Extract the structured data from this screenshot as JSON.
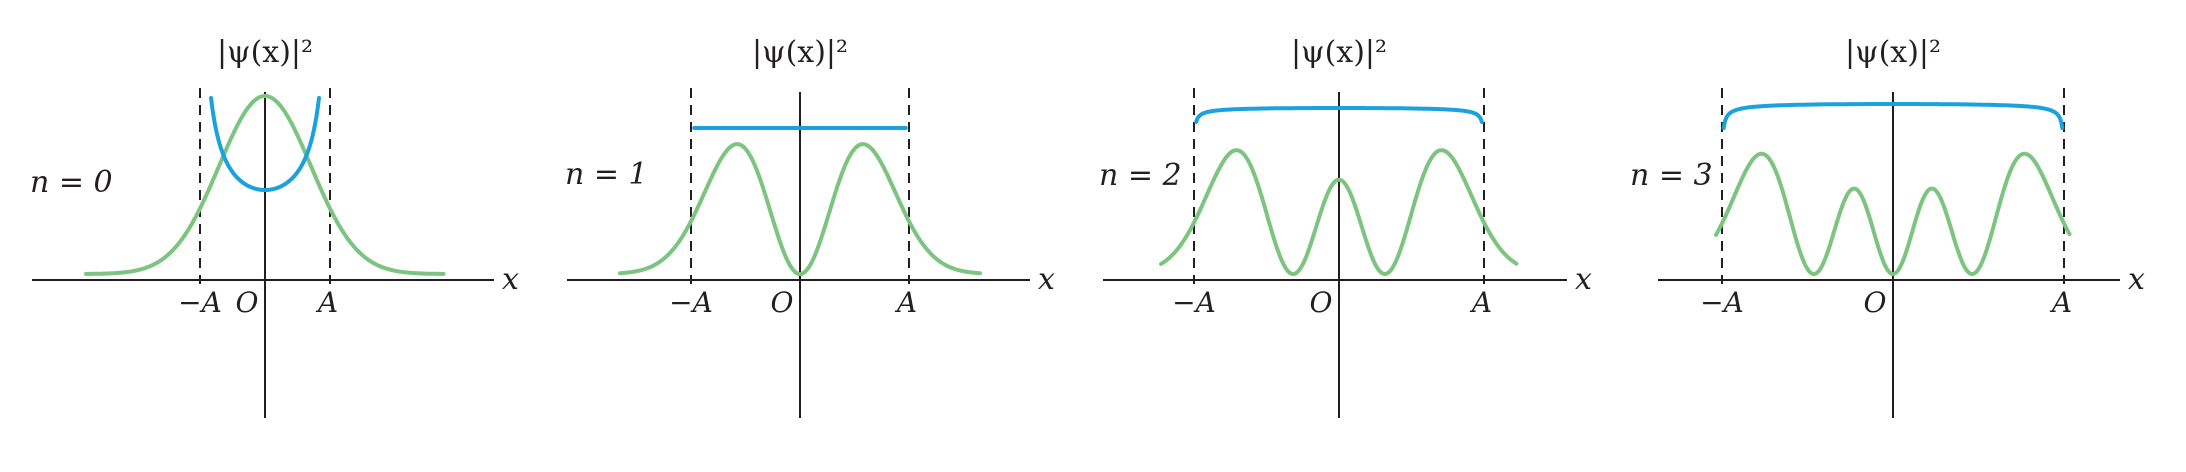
{
  "colors": {
    "quantum_curve": "#7cc47f",
    "classical_curve": "#1ba1de",
    "axes": "#231f20"
  },
  "panels": [
    {
      "n_label": "n = 0",
      "n": 0,
      "y_axis_label": "|ψ(x)|²",
      "x_axis_label": "x",
      "minus_A_label": "−A",
      "origin_label": "O",
      "A_label": "A"
    },
    {
      "n_label": "n = 1",
      "n": 1,
      "y_axis_label": "|ψ(x)|²",
      "x_axis_label": "x",
      "minus_A_label": "−A",
      "origin_label": "O",
      "A_label": "A"
    },
    {
      "n_label": "n = 2",
      "n": 2,
      "y_axis_label": "|ψ(x)|²",
      "x_axis_label": "x",
      "minus_A_label": "−A",
      "origin_label": "O",
      "A_label": "A"
    },
    {
      "n_label": "n = 3",
      "n": 3,
      "y_axis_label": "|ψ(x)|²",
      "x_axis_label": "x",
      "minus_A_label": "−A",
      "origin_label": "O",
      "A_label": "A"
    }
  ]
}
